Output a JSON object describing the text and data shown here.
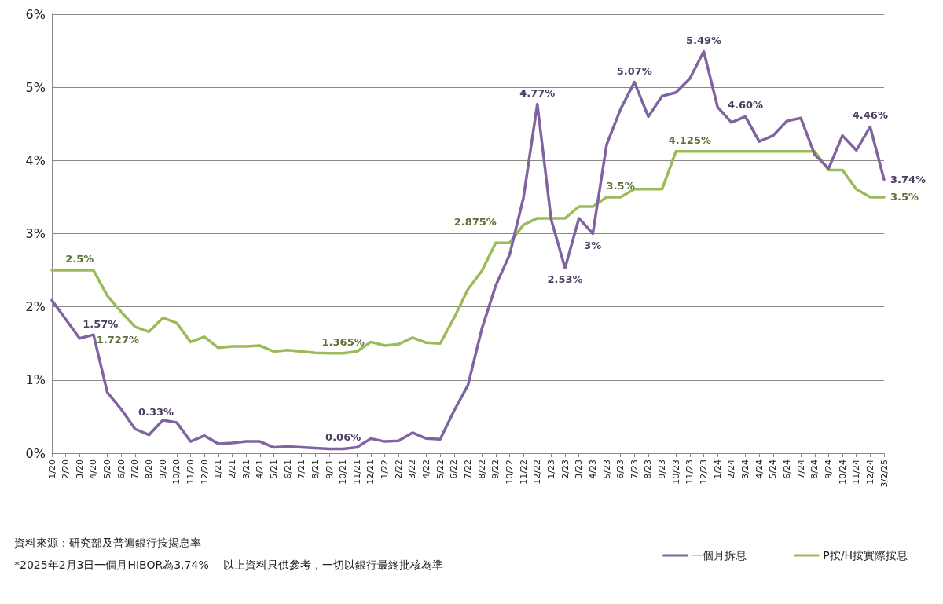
{
  "chart_data": {
    "type": "line",
    "categories": [
      "1/20",
      "2/20",
      "3/20",
      "4/20",
      "5/20",
      "6/20",
      "7/20",
      "8/20",
      "9/20",
      "10/20",
      "11/20",
      "12/20",
      "1/21",
      "2/21",
      "3/21",
      "4/21",
      "5/21",
      "6/21",
      "7/21",
      "8/21",
      "9/21",
      "10/21",
      "11/21",
      "12/21",
      "1/22",
      "2/22",
      "3/22",
      "4/22",
      "5/22",
      "6/22",
      "7/22",
      "8/22",
      "9/22",
      "10/22",
      "11/22",
      "12/22",
      "1/23",
      "2/23",
      "3/23",
      "4/23",
      "5/23",
      "6/23",
      "7/23",
      "8/23",
      "9/23",
      "10/23",
      "11/23",
      "12/23",
      "1/24",
      "2/24",
      "3/24",
      "4/24",
      "5/24",
      "6/24",
      "7/24",
      "8/24",
      "9/24",
      "10/24",
      "11/24",
      "12/24",
      "3/2/25"
    ],
    "series": [
      {
        "name": "一個月拆息",
        "color": "#8064a2",
        "values": [
          2.09,
          1.83,
          1.57,
          1.62,
          0.83,
          0.6,
          0.33,
          0.25,
          0.45,
          0.42,
          0.16,
          0.24,
          0.13,
          0.14,
          0.16,
          0.16,
          0.08,
          0.09,
          0.08,
          0.07,
          0.06,
          0.06,
          0.08,
          0.2,
          0.16,
          0.17,
          0.28,
          0.2,
          0.19,
          0.58,
          0.93,
          1.7,
          2.29,
          2.71,
          3.49,
          4.77,
          3.19,
          2.53,
          3.21,
          3,
          4.22,
          4.7,
          5.07,
          4.6,
          4.88,
          4.93,
          5.12,
          5.49,
          4.73,
          4.52,
          4.6,
          4.26,
          4.34,
          4.54,
          4.58,
          4.08,
          3.89,
          4.34,
          4.14,
          4.46,
          3.74
        ],
        "value_labels": [
          null,
          null,
          "1.57%",
          null,
          null,
          null,
          "0.33%",
          null,
          null,
          null,
          null,
          null,
          null,
          null,
          null,
          null,
          null,
          null,
          null,
          null,
          null,
          "0.06%",
          null,
          null,
          null,
          null,
          null,
          null,
          null,
          null,
          null,
          null,
          null,
          null,
          null,
          "4.77%",
          null,
          "2.53%",
          null,
          "3%",
          null,
          null,
          "5.07%",
          null,
          null,
          null,
          null,
          "5.49%",
          null,
          null,
          "4.60%",
          null,
          null,
          null,
          null,
          null,
          null,
          null,
          null,
          "4.46%",
          "3.74%"
        ]
      },
      {
        "name": "P按/H按實際按息",
        "color": "#9bbb59",
        "values": [
          2.5,
          2.5,
          2.5,
          2.5,
          2.15,
          1.93,
          1.727,
          1.66,
          1.85,
          1.78,
          1.52,
          1.59,
          1.44,
          1.46,
          1.46,
          1.47,
          1.39,
          1.41,
          1.39,
          1.37,
          1.365,
          1.365,
          1.39,
          1.52,
          1.47,
          1.49,
          1.58,
          1.51,
          1.5,
          1.85,
          2.24,
          2.49,
          2.875,
          2.875,
          3.12,
          3.21,
          3.21,
          3.21,
          3.37,
          3.37,
          3.5,
          3.5,
          3.61,
          3.61,
          3.61,
          4.125,
          4.125,
          4.125,
          4.125,
          4.125,
          4.125,
          4.125,
          4.125,
          4.125,
          4.125,
          4.125,
          3.87,
          3.87,
          3.61,
          3.5,
          3.5
        ],
        "value_labels": [
          null,
          null,
          "2.5%",
          null,
          null,
          null,
          "1.727%",
          null,
          null,
          null,
          null,
          null,
          null,
          null,
          null,
          null,
          null,
          null,
          null,
          null,
          null,
          "1.365%",
          null,
          null,
          null,
          null,
          null,
          null,
          null,
          null,
          null,
          null,
          "2.875%",
          null,
          null,
          null,
          null,
          null,
          null,
          null,
          null,
          "3.5%",
          null,
          null,
          null,
          null,
          "4.125%",
          null,
          null,
          null,
          null,
          null,
          null,
          null,
          null,
          null,
          null,
          null,
          null,
          null,
          "3.5%"
        ]
      }
    ],
    "ylim": [
      0,
      6
    ],
    "yticks": [
      {
        "value": 0,
        "label": "0%"
      },
      {
        "value": 1,
        "label": "1%"
      },
      {
        "value": 2,
        "label": "2%"
      },
      {
        "value": 3,
        "label": "3%"
      },
      {
        "value": 4,
        "label": "4%"
      },
      {
        "value": 5,
        "label": "5%"
      },
      {
        "value": 6,
        "label": "6%"
      }
    ],
    "grid": "y",
    "legend": "bottom right",
    "marker": "none",
    "line_style": "solid",
    "annotations": [
      "資料來源：研究部及普遍銀行按揭息率",
      "*2025年2月3日一個月HIBOR為3.74%　 以上資料只供參考，一切以銀行最終批核為準"
    ]
  }
}
